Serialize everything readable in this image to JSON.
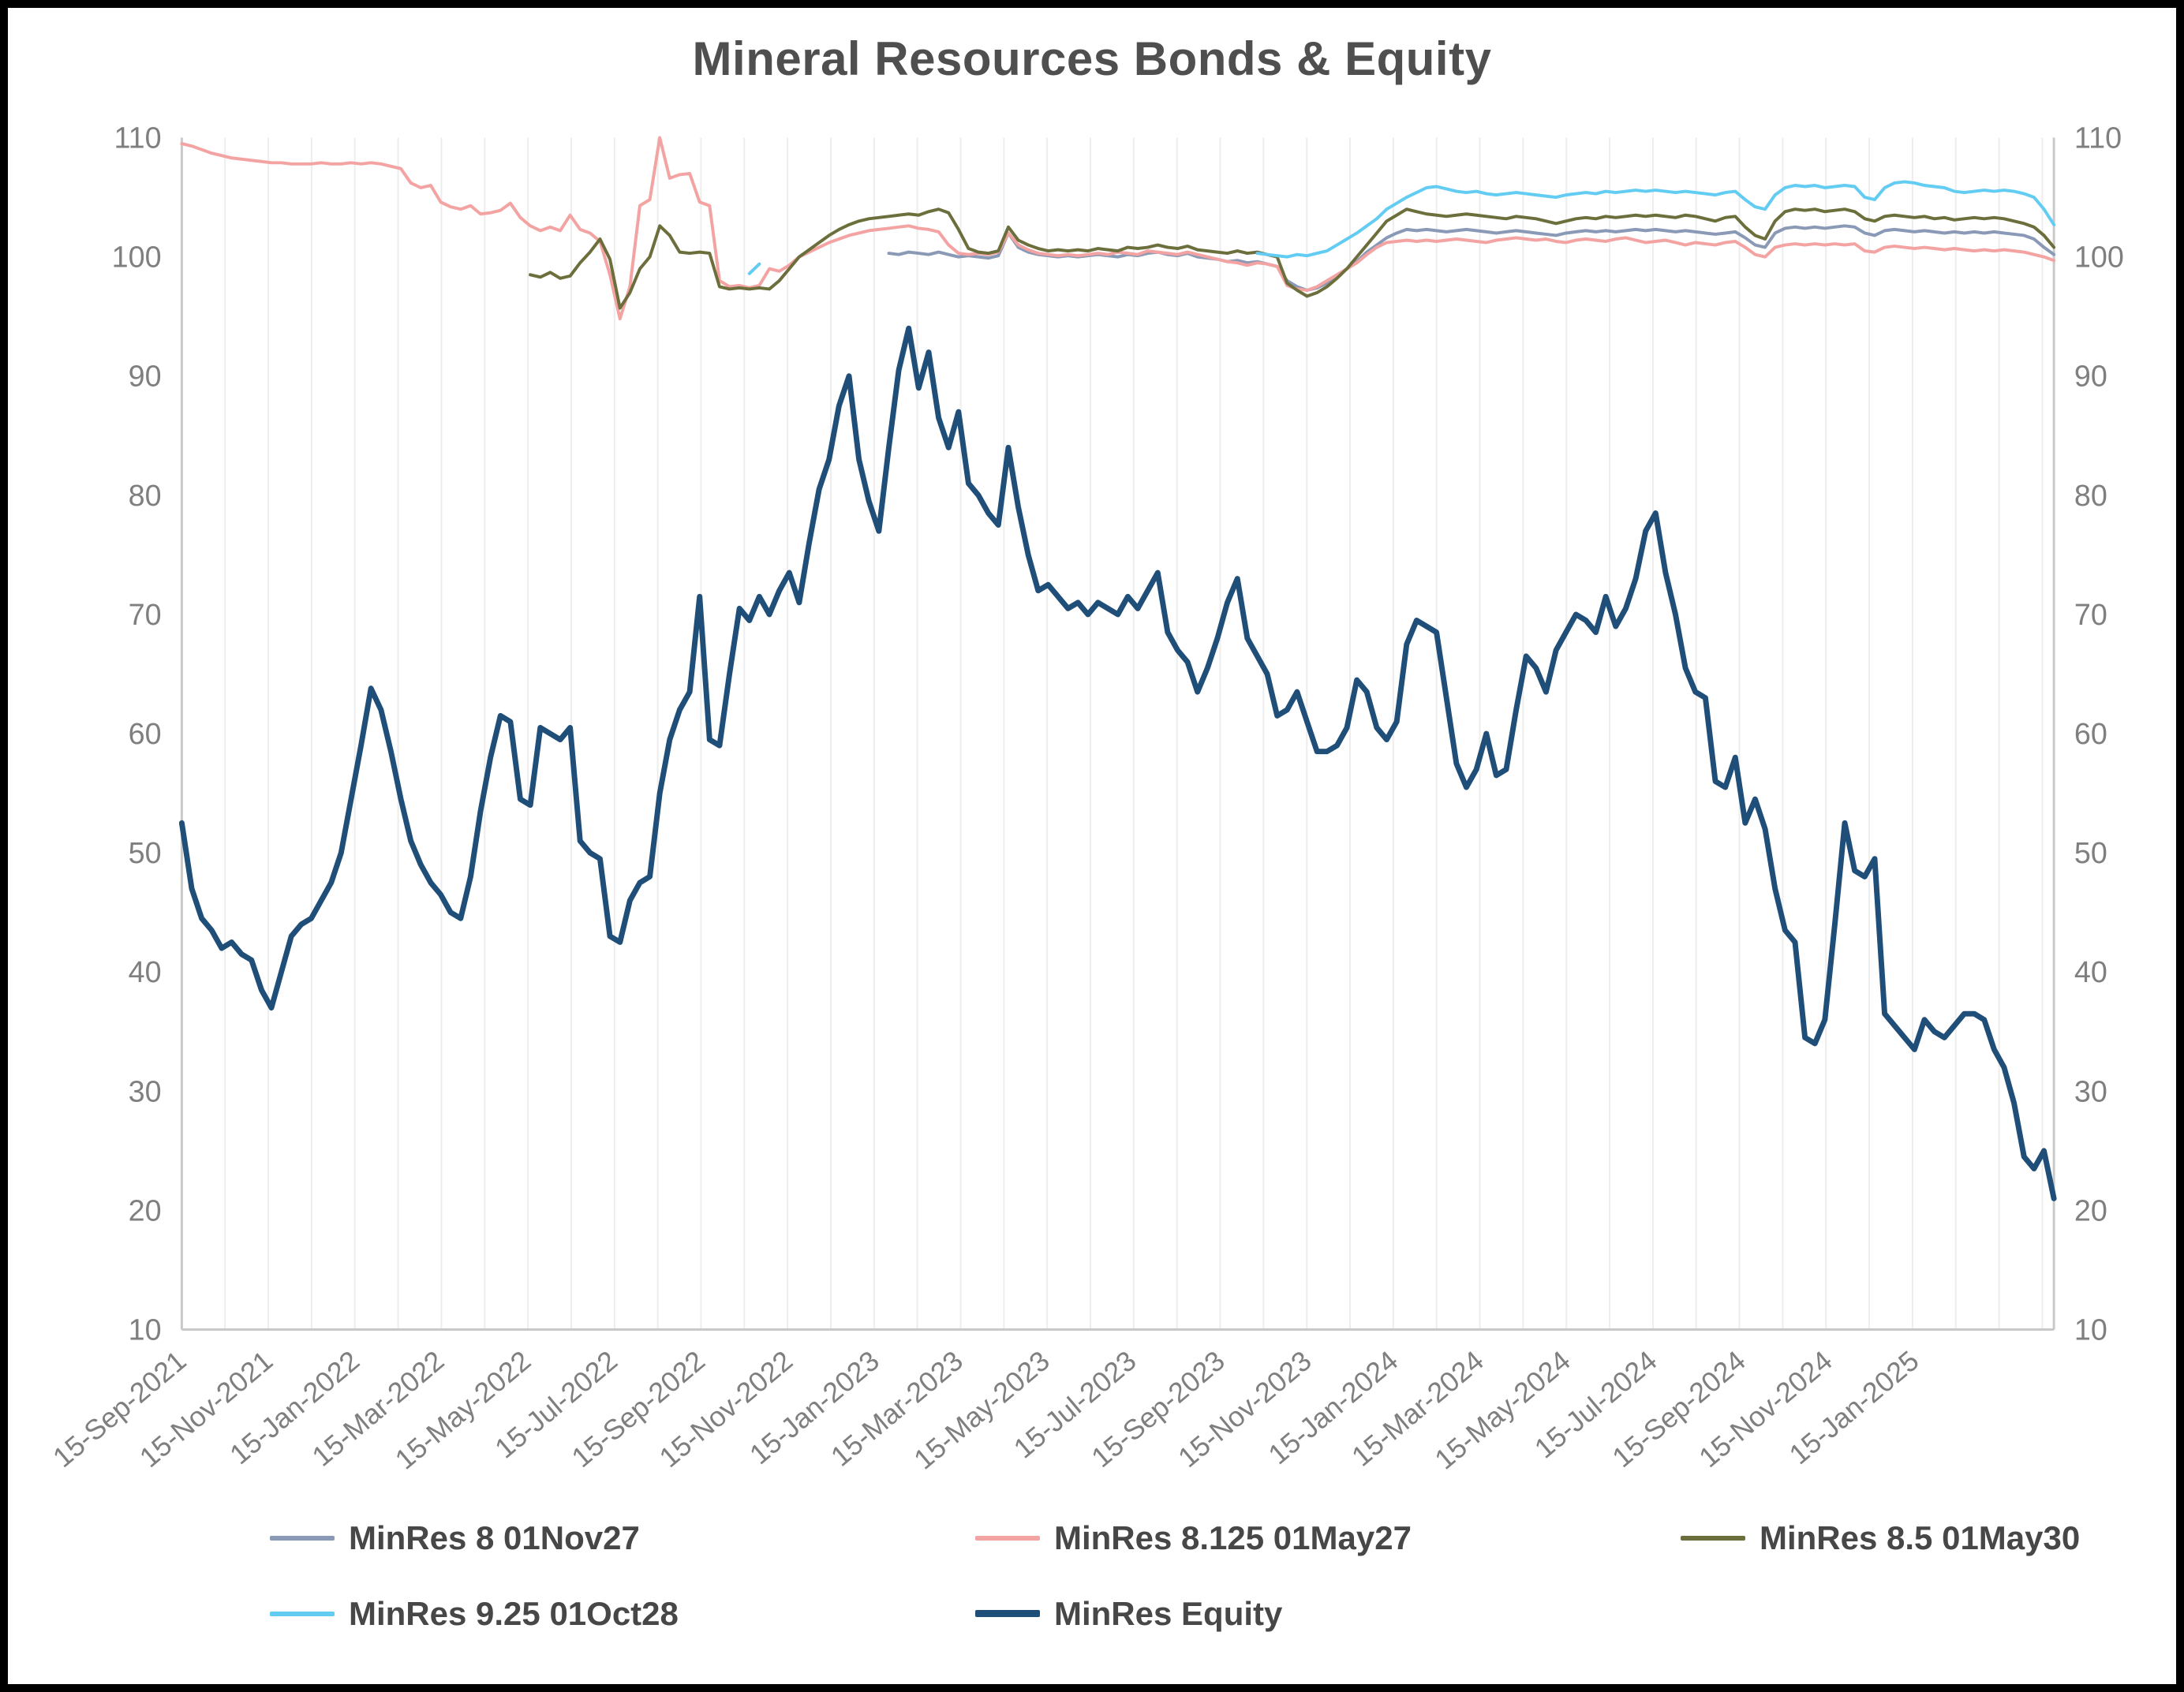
{
  "chart_data": {
    "type": "line",
    "title": "Mineral Resources Bonds & Equity",
    "x_axis": {
      "unit": "weeks since 2021-09-15",
      "total_weeks": 188,
      "gridline_step_weeks": 4.345,
      "ticks": [
        {
          "label": "15-Sep-2021",
          "week": 0
        },
        {
          "label": "15-Nov-2021",
          "week": 8.7
        },
        {
          "label": "15-Jan-2022",
          "week": 17.4
        },
        {
          "label": "15-Mar-2022",
          "week": 25.9
        },
        {
          "label": "15-May-2022",
          "week": 34.6
        },
        {
          "label": "15-Jul-2022",
          "week": 43.3
        },
        {
          "label": "15-Sep-2022",
          "week": 52.1
        },
        {
          "label": "15-Nov-2022",
          "week": 60.9
        },
        {
          "label": "15-Jan-2023",
          "week": 69.6
        },
        {
          "label": "15-Mar-2023",
          "week": 78.0
        },
        {
          "label": "15-May-2023",
          "week": 86.7
        },
        {
          "label": "15-Jul-2023",
          "week": 95.4
        },
        {
          "label": "15-Sep-2023",
          "week": 104.3
        },
        {
          "label": "15-Nov-2023",
          "week": 113.0
        },
        {
          "label": "15-Jan-2024",
          "week": 121.7
        },
        {
          "label": "15-Mar-2024",
          "week": 130.3
        },
        {
          "label": "15-May-2024",
          "week": 139.0
        },
        {
          "label": "15-Jul-2024",
          "week": 147.7
        },
        {
          "label": "15-Sep-2024",
          "week": 156.6
        },
        {
          "label": "15-Nov-2024",
          "week": 165.3
        },
        {
          "label": "15-Jan-2025",
          "week": 174.0
        }
      ]
    },
    "y_axis": {
      "min": 10,
      "max": 110,
      "step": 10,
      "sides": [
        "left",
        "right"
      ],
      "gridlines": false
    },
    "series": [
      {
        "name": "MinRes 8 01Nov27",
        "color": "#8a99b5",
        "line_width": 4,
        "segments": [
          {
            "start_week": 71,
            "values": [
              100.3,
              100.2,
              100.4,
              100.3,
              100.2,
              100.4,
              100.2,
              100,
              100.1,
              100,
              99.9,
              100.1,
              102,
              100.8,
              100.4,
              100.2,
              100.1,
              100,
              100.1,
              100,
              100.1,
              100.2,
              100.1,
              100,
              100.2,
              100.1,
              100.3,
              100.4,
              100.2,
              100.1,
              100.3,
              100,
              99.9,
              99.8,
              99.6,
              99.7,
              99.5,
              99.6,
              99.4,
              99.2,
              98,
              97.5,
              97.2,
              97.4,
              97.8,
              98.4,
              99,
              99.6,
              100.4,
              101,
              101.6,
              102,
              102.3,
              102.2,
              102.3,
              102.2,
              102.1,
              102.2,
              102.3,
              102.2,
              102.1,
              102,
              102.1,
              102.2,
              102.1,
              102,
              101.9,
              101.8,
              102,
              102.1,
              102.2,
              102.1,
              102.2,
              102.1,
              102.2,
              102.3,
              102.2,
              102.3,
              102.2,
              102.1,
              102.2,
              102.1,
              102,
              101.9,
              102,
              102.1,
              101.6,
              101,
              100.8,
              102,
              102.4,
              102.5,
              102.4,
              102.5,
              102.4,
              102.5,
              102.6,
              102.5,
              102,
              101.8,
              102.2,
              102.3,
              102.2,
              102.1,
              102.2,
              102.1,
              102,
              102.1,
              102,
              102.1,
              102,
              102.1,
              102,
              101.9,
              101.8,
              101.5,
              100.8,
              100.2
            ]
          }
        ]
      },
      {
        "name": "MinRes 8.125 01May27",
        "color": "#f4a3a3",
        "line_width": 4,
        "segments": [
          {
            "start_week": 0,
            "values": [
              109.5,
              109.3,
              109,
              108.7,
              108.5,
              108.3,
              108.2,
              108.1,
              108,
              107.9,
              107.9,
              107.8,
              107.8,
              107.8,
              107.9,
              107.8,
              107.8,
              107.9,
              107.8,
              107.9,
              107.8,
              107.6,
              107.4,
              106.2,
              105.8,
              106,
              104.6,
              104.2,
              104,
              104.3,
              103.6,
              103.7,
              103.9,
              104.5,
              103.3,
              102.6,
              102.2,
              102.5,
              102.2,
              103.5,
              102.3,
              102,
              101.3,
              98.5,
              94.8,
              97.5,
              104.3,
              104.8,
              110,
              106.6,
              106.9,
              107,
              104.6,
              104.3,
              98,
              97.5,
              97.6,
              97.4,
              97.6,
              99,
              98.8,
              99.3,
              100,
              100.4,
              100.8,
              101.2,
              101.5,
              101.8,
              102,
              102.2,
              102.3,
              102.4,
              102.5,
              102.6,
              102.4,
              102.3,
              102.1,
              101,
              100.3,
              100.2,
              100.3,
              100.2,
              100.4,
              102,
              101,
              100.6,
              100.3,
              100.2,
              100.1,
              100.2,
              100.1,
              100.2,
              100.3,
              100.2,
              100.4,
              100.3,
              100.2,
              100.5,
              100.4,
              100.3,
              100.2,
              100.4,
              100.2,
              100,
              99.8,
              99.6,
              99.5,
              99.3,
              99.5,
              99.4,
              99.2,
              97.6,
              97.3,
              97.2,
              97.5,
              98,
              98.5,
              99,
              99.5,
              100.2,
              100.8,
              101.2,
              101.3,
              101.4,
              101.3,
              101.4,
              101.3,
              101.4,
              101.5,
              101.4,
              101.3,
              101.2,
              101.4,
              101.5,
              101.6,
              101.5,
              101.4,
              101.5,
              101.3,
              101.2,
              101.4,
              101.5,
              101.4,
              101.3,
              101.5,
              101.6,
              101.4,
              101.2,
              101.3,
              101.4,
              101.2,
              101,
              101.2,
              101.1,
              101,
              101.2,
              101.3,
              100.8,
              100.2,
              100,
              100.8,
              101,
              101.1,
              101,
              101.1,
              101,
              101.1,
              101,
              101.1,
              100.5,
              100.4,
              100.8,
              100.9,
              100.8,
              100.7,
              100.8,
              100.7,
              100.6,
              100.7,
              100.6,
              100.5,
              100.6,
              100.5,
              100.6,
              100.5,
              100.4,
              100.2,
              100,
              99.7
            ]
          }
        ]
      },
      {
        "name": "MinRes 8.5 01May30",
        "color": "#6c6f3c",
        "line_width": 4,
        "segments": [
          {
            "start_week": 35,
            "values": [
              98.5,
              98.3,
              98.7,
              98.2,
              98.4,
              99.5,
              100.4,
              101.5,
              99.8,
              95.7,
              97,
              99,
              100,
              102.6,
              101.8,
              100.4,
              100.3,
              100.4,
              100.3,
              97.5,
              97.3,
              97.4,
              97.3,
              97.4,
              97.3,
              98,
              99,
              100,
              100.6,
              101.2,
              101.8,
              102.3,
              102.7,
              103,
              103.2,
              103.3,
              103.4,
              103.5,
              103.6,
              103.5,
              103.8,
              104,
              103.7,
              102.3,
              100.7,
              100.4,
              100.3,
              100.5,
              102.5,
              101.4,
              101,
              100.7,
              100.5,
              100.6,
              100.5,
              100.6,
              100.5,
              100.7,
              100.6,
              100.5,
              100.8,
              100.7,
              100.8,
              101,
              100.8,
              100.7,
              100.9,
              100.6,
              100.5,
              100.4,
              100.3,
              100.5,
              100.3,
              100.4,
              100.2,
              100,
              97.8,
              97.2,
              96.7,
              97,
              97.5,
              98.2,
              99,
              100,
              101,
              102,
              103,
              103.5,
              104,
              103.8,
              103.6,
              103.5,
              103.4,
              103.5,
              103.6,
              103.5,
              103.4,
              103.3,
              103.2,
              103.4,
              103.3,
              103.2,
              103,
              102.8,
              103,
              103.2,
              103.3,
              103.2,
              103.4,
              103.3,
              103.4,
              103.5,
              103.4,
              103.5,
              103.4,
              103.3,
              103.5,
              103.4,
              103.2,
              103,
              103.3,
              103.4,
              102.5,
              101.8,
              101.5,
              103,
              103.8,
              104,
              103.9,
              104,
              103.8,
              103.9,
              104,
              103.8,
              103.2,
              103,
              103.4,
              103.5,
              103.4,
              103.3,
              103.4,
              103.2,
              103.3,
              103.1,
              103.2,
              103.3,
              103.2,
              103.3,
              103.2,
              103,
              102.8,
              102.5,
              101.8,
              100.8
            ]
          }
        ]
      },
      {
        "name": "MinRes 9.25 01Oct28",
        "color": "#63ccf2",
        "line_width": 4,
        "segments": [
          {
            "start_week": 57,
            "values": [
              98.6,
              99.4
            ]
          },
          {
            "start_week": 108,
            "values": [
              100.3,
              100.2,
              100.1,
              100,
              100.2,
              100.1,
              100.3,
              100.5,
              101,
              101.5,
              102,
              102.6,
              103.2,
              104,
              104.5,
              105,
              105.4,
              105.8,
              105.9,
              105.7,
              105.5,
              105.4,
              105.5,
              105.3,
              105.2,
              105.3,
              105.4,
              105.3,
              105.2,
              105.1,
              105,
              105.2,
              105.3,
              105.4,
              105.3,
              105.5,
              105.4,
              105.5,
              105.6,
              105.5,
              105.6,
              105.5,
              105.4,
              105.5,
              105.4,
              105.3,
              105.2,
              105.4,
              105.5,
              104.8,
              104.2,
              104,
              105.2,
              105.8,
              106,
              105.9,
              106,
              105.8,
              105.9,
              106,
              105.9,
              105,
              104.8,
              105.8,
              106.2,
              106.3,
              106.2,
              106,
              105.9,
              105.8,
              105.5,
              105.4,
              105.5,
              105.6,
              105.5,
              105.6,
              105.5,
              105.3,
              105,
              104,
              102.7
            ]
          }
        ]
      },
      {
        "name": "MinRes Equity",
        "color": "#1f4e79",
        "line_width": 7,
        "segments": [
          {
            "start_week": 0,
            "values": [
              52.5,
              47,
              44.5,
              43.5,
              42,
              42.5,
              41.5,
              41,
              38.5,
              37,
              40,
              43,
              44,
              44.5,
              46,
              47.5,
              50,
              54.5,
              59,
              63.8,
              62,
              58.5,
              54.5,
              51,
              49,
              47.5,
              46.5,
              45,
              44.5,
              48,
              53.5,
              58,
              61.5,
              61,
              54.5,
              54,
              60.5,
              60,
              59.5,
              60.5,
              51,
              50,
              49.5,
              43,
              42.5,
              46,
              47.5,
              48,
              55,
              59.5,
              62,
              63.5,
              71.5,
              59.5,
              59,
              65,
              70.5,
              69.5,
              71.5,
              70,
              72,
              73.5,
              71,
              76,
              80.5,
              83,
              87.5,
              90,
              83,
              79.5,
              77,
              84,
              90.5,
              94,
              89,
              92,
              86.5,
              84,
              87,
              81,
              80,
              78.5,
              77.5,
              84,
              79,
              75,
              72,
              72.5,
              71.5,
              70.5,
              71,
              70,
              71,
              70.5,
              70,
              71.5,
              70.5,
              72,
              73.5,
              68.5,
              67,
              66,
              63.5,
              65.5,
              68,
              71,
              73,
              68,
              66.5,
              65,
              61.5,
              62,
              63.5,
              61,
              58.5,
              58.5,
              59,
              60.5,
              64.5,
              63.5,
              60.5,
              59.5,
              61,
              67.5,
              69.5,
              69,
              68.5,
              63,
              57.5,
              55.5,
              57,
              60,
              56.5,
              57,
              62,
              66.5,
              65.5,
              63.5,
              67,
              68.5,
              70,
              69.5,
              68.5,
              71.5,
              69,
              70.5,
              73,
              77,
              78.5,
              73.5,
              70,
              65.5,
              63.5,
              63,
              56,
              55.5,
              58,
              52.5,
              54.5,
              52,
              47,
              43.5,
              42.5,
              34.5,
              34,
              36,
              44,
              52.5,
              48.5,
              48,
              49.5,
              36.5,
              35.5,
              34.5,
              33.5,
              36,
              35,
              34.5,
              35.5,
              36.5,
              36.5,
              36,
              33.5,
              32,
              29,
              24.5,
              23.5,
              25,
              21
            ]
          }
        ]
      }
    ],
    "legend": {
      "rows": [
        [
          "MinRes 8 01Nov27",
          "MinRes 8.125 01May27",
          "MinRes 8.5 01May30"
        ],
        [
          "MinRes 9.25 01Oct28",
          "MinRes Equity"
        ]
      ]
    },
    "style": {
      "gridline_color": "#ededed",
      "axis_line_color": "#c9c9c9",
      "tick_label_color": "#7f7f7f",
      "title_color": "#4f4f4f",
      "legend_label_color": "#474747"
    }
  }
}
